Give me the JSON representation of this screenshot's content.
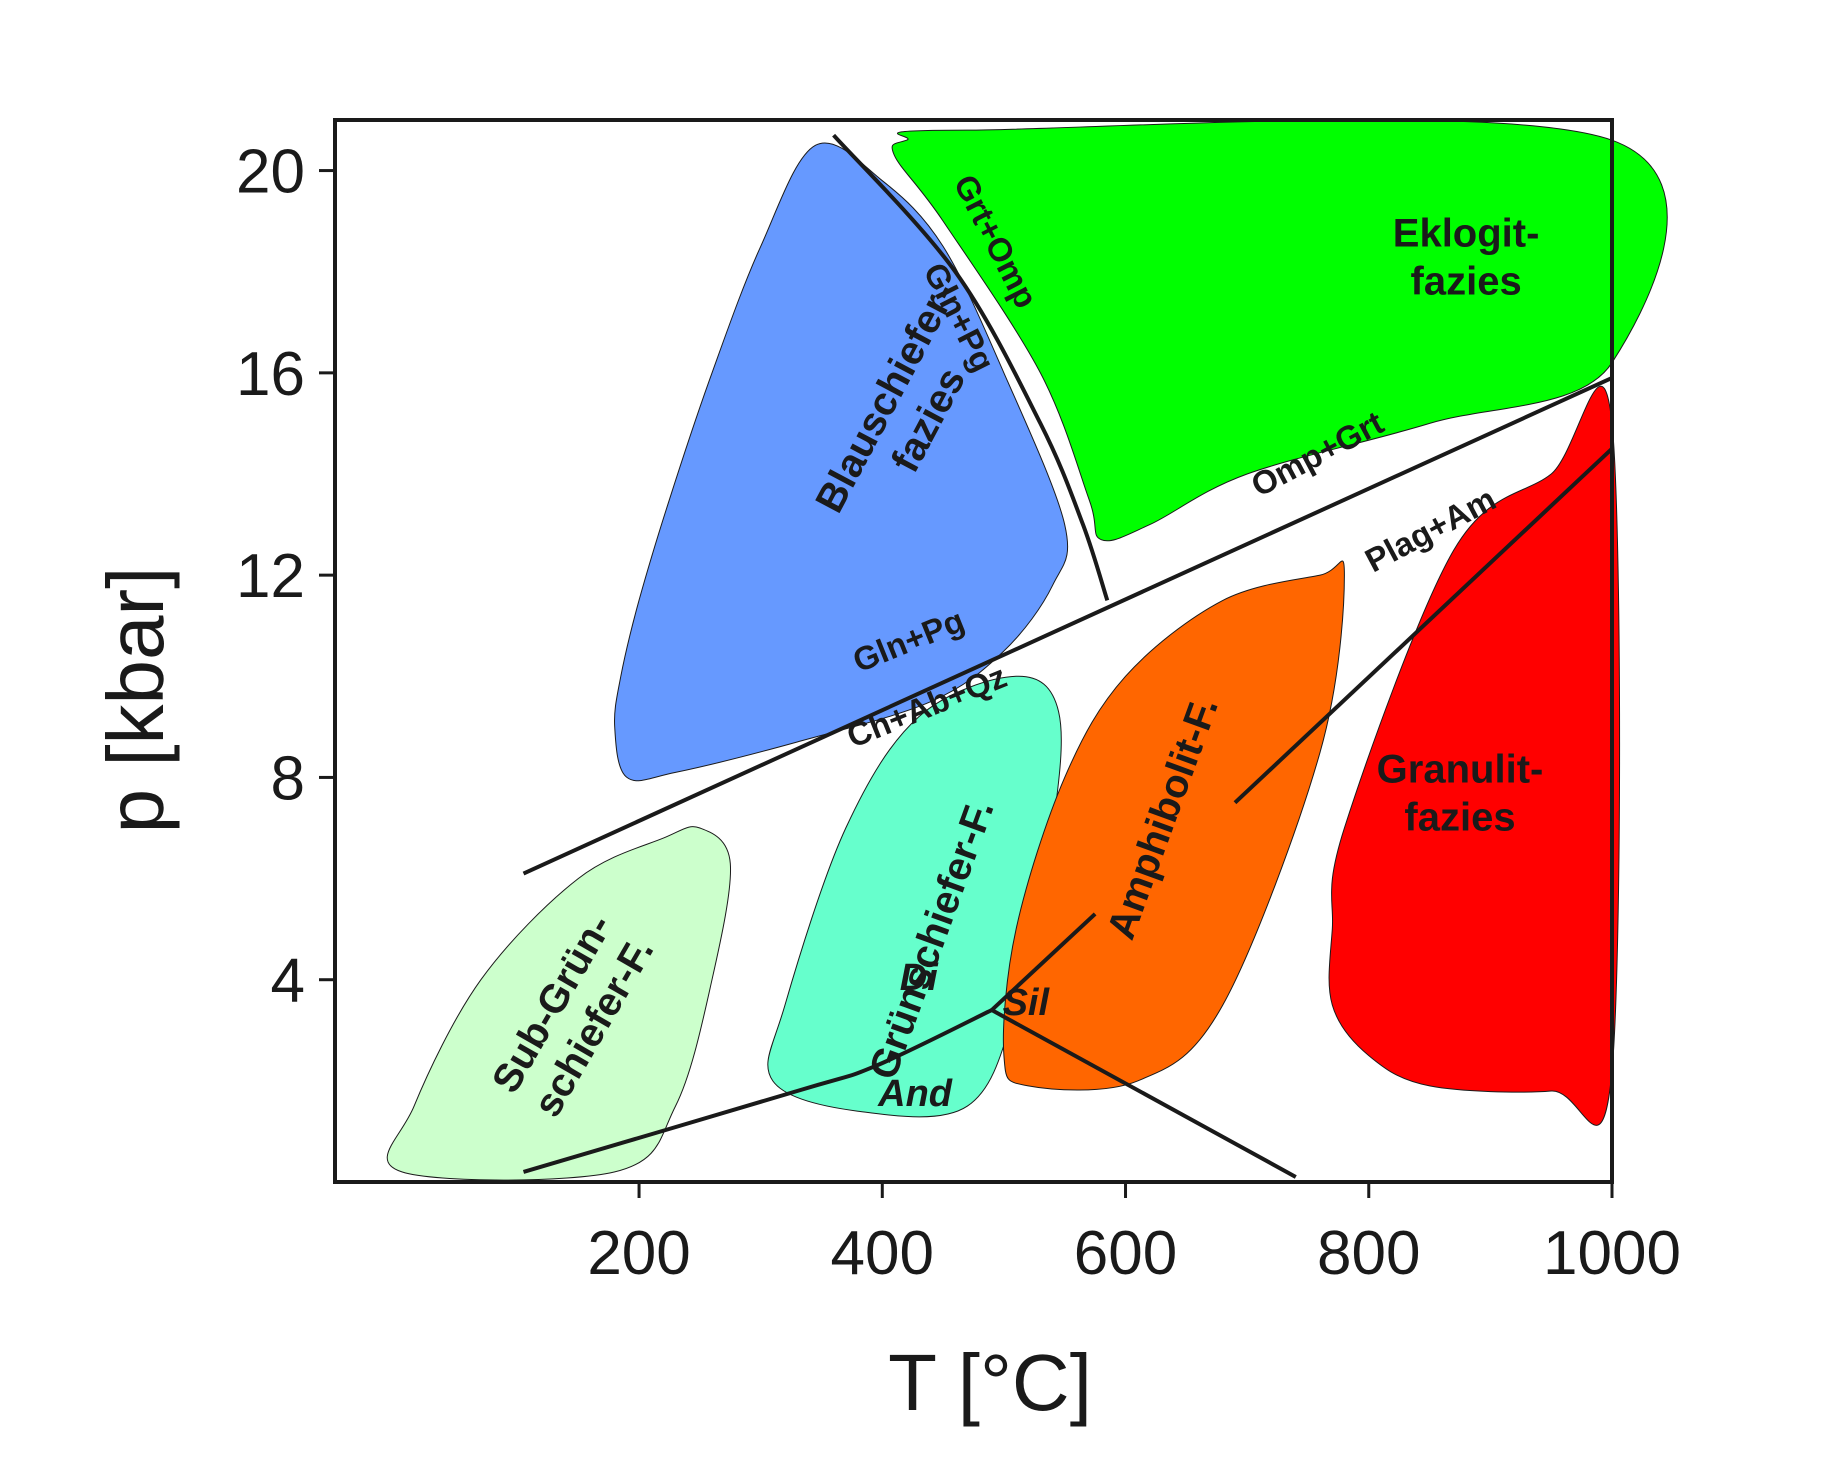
{
  "chart_data": {
    "type": "area",
    "xlabel": "T [°C]",
    "ylabel": "p [kbar]",
    "xlim": [
      -50,
      1000
    ],
    "ylim": [
      0,
      21
    ],
    "x_ticks": [
      200,
      400,
      600,
      800,
      1000
    ],
    "y_ticks": [
      4,
      8,
      12,
      16,
      20
    ],
    "grid": false,
    "facies": [
      {
        "name": "Blauschiefer-fazies",
        "lines": [
          "Blauschiefer-",
          "fazies"
        ],
        "color": "#6699ff",
        "outline": [
          [
            345,
            20.5
          ],
          [
            300,
            18.5
          ],
          [
            260,
            16
          ],
          [
            225,
            13.5
          ],
          [
            200,
            11.5
          ],
          [
            185,
            10
          ],
          [
            180,
            9
          ],
          [
            190,
            8
          ],
          [
            230,
            8.1
          ],
          [
            330,
            8.7
          ],
          [
            440,
            9.5
          ],
          [
            500,
            10.5
          ],
          [
            540,
            11.8
          ],
          [
            550,
            13
          ],
          [
            500,
            16
          ],
          [
            450,
            18.5
          ],
          [
            400,
            19.8
          ]
        ],
        "label_at": [
          420,
          15.3
        ]
      },
      {
        "name": "Eklogit-fazies",
        "lines": [
          "Eklogit-",
          "fazies"
        ],
        "color": "#00ff00",
        "outline": [
          [
            420,
            20.6
          ],
          [
            470,
            20.8
          ],
          [
            1000,
            20.6
          ],
          [
            1000,
            16.2
          ],
          [
            850,
            15
          ],
          [
            700,
            14
          ],
          [
            620,
            13
          ],
          [
            580,
            12.7
          ],
          [
            570,
            13.5
          ],
          [
            530,
            16
          ],
          [
            450,
            19
          ],
          [
            410,
            20.3
          ]
        ],
        "label_at": [
          880,
          18.3
        ]
      },
      {
        "name": "Sub-Grün-schiefer-F.",
        "lines": [
          "Sub-Grün-",
          "schiefer-F."
        ],
        "color": "#ccffcc",
        "outline": [
          [
            5,
            0.2
          ],
          [
            180,
            0.2
          ],
          [
            230,
            1.5
          ],
          [
            260,
            4
          ],
          [
            275,
            6.3
          ],
          [
            250,
            7
          ],
          [
            220,
            6.8
          ],
          [
            150,
            6
          ],
          [
            70,
            4
          ],
          [
            15,
            1.5
          ]
        ],
        "label_at": [
          145,
          3.3
        ]
      },
      {
        "name": "Grünschiefer-F.",
        "lines": [
          "Grünschiefer-F."
        ],
        "color": "#66ffcc",
        "outline": [
          [
            380,
            1.4
          ],
          [
            470,
            1.5
          ],
          [
            510,
            3.5
          ],
          [
            540,
            7
          ],
          [
            545,
            9.3
          ],
          [
            510,
            10
          ],
          [
            430,
            9.2
          ],
          [
            370,
            7
          ],
          [
            320,
            3.5
          ],
          [
            310,
            2
          ]
        ],
        "label_at": [
          440,
          4.8
        ]
      },
      {
        "name": "Amphibolit-F.",
        "lines": [
          "Amphibolit-F."
        ],
        "color": "#ff6600",
        "outline": [
          [
            520,
            1.9
          ],
          [
            610,
            2
          ],
          [
            680,
            3.5
          ],
          [
            760,
            8.5
          ],
          [
            780,
            12
          ],
          [
            760,
            12
          ],
          [
            680,
            11.5
          ],
          [
            600,
            10
          ],
          [
            550,
            8
          ],
          [
            510,
            5
          ],
          [
            500,
            2.5
          ]
        ],
        "label_at": [
          630,
          7.2
        ]
      },
      {
        "name": "Granulit-fazies",
        "lines": [
          "Granulit-",
          "fazies"
        ],
        "color": "#ff0000",
        "outline": [
          [
            850,
            1.9
          ],
          [
            950,
            1.8
          ],
          [
            1000,
            2.2
          ],
          [
            1000,
            15
          ],
          [
            950,
            14
          ],
          [
            870,
            12.5
          ],
          [
            780,
            7
          ],
          [
            770,
            5
          ],
          [
            770,
            3.5
          ],
          [
            800,
            2.5
          ]
        ],
        "label_at": [
          875,
          7.7
        ]
      }
    ],
    "boundaries": [
      {
        "name": "Gln+Pg / Ch+Ab+Qz",
        "points": [
          [
            105,
            6.1
          ],
          [
            1000,
            15.9
          ]
        ]
      },
      {
        "name": "Grt+Omp / Gln+Pg",
        "points": [
          [
            360,
            20.7
          ],
          [
            460,
            18
          ],
          [
            530,
            15
          ],
          [
            565,
            13
          ],
          [
            585,
            11.5
          ]
        ]
      },
      {
        "name": "Amphibolit/Granulit",
        "points": [
          [
            690,
            7.5
          ],
          [
            1000,
            14.5
          ]
        ]
      },
      {
        "name": "And/Di",
        "points": [
          [
            105,
            0.2
          ],
          [
            330,
            1.8
          ],
          [
            395,
            2.3
          ],
          [
            490,
            3.4
          ]
        ]
      },
      {
        "name": "Di/Sil",
        "points": [
          [
            490,
            3.4
          ],
          [
            575,
            5.3
          ]
        ]
      },
      {
        "name": "And/Sil",
        "points": [
          [
            490,
            3.4
          ],
          [
            740,
            0.1
          ]
        ]
      }
    ],
    "reaction_labels": [
      {
        "text": "Grt+Omp",
        "at": [
          485,
          18.5
        ],
        "angle": 63
      },
      {
        "text": "Gln+Pg",
        "at": [
          455,
          17
        ],
        "angle": 63
      },
      {
        "text": "Omp+Grt",
        "at": [
          762,
          14.2
        ],
        "angle": -28
      },
      {
        "text": "Plag+Am",
        "at": [
          855,
          12.7
        ],
        "angle": -28
      },
      {
        "text": "Gln+Pg",
        "at": [
          425,
          10.5
        ],
        "angle": -22
      },
      {
        "text": "Ch+Ab+Qz",
        "at": [
          440,
          9.2
        ],
        "angle": -22
      }
    ],
    "mineral_labels": [
      {
        "text": "Di",
        "at": [
          430,
          3.8
        ]
      },
      {
        "text": "Sil",
        "at": [
          518,
          3.3
        ]
      },
      {
        "text": "And",
        "at": [
          427,
          1.5
        ]
      }
    ]
  }
}
